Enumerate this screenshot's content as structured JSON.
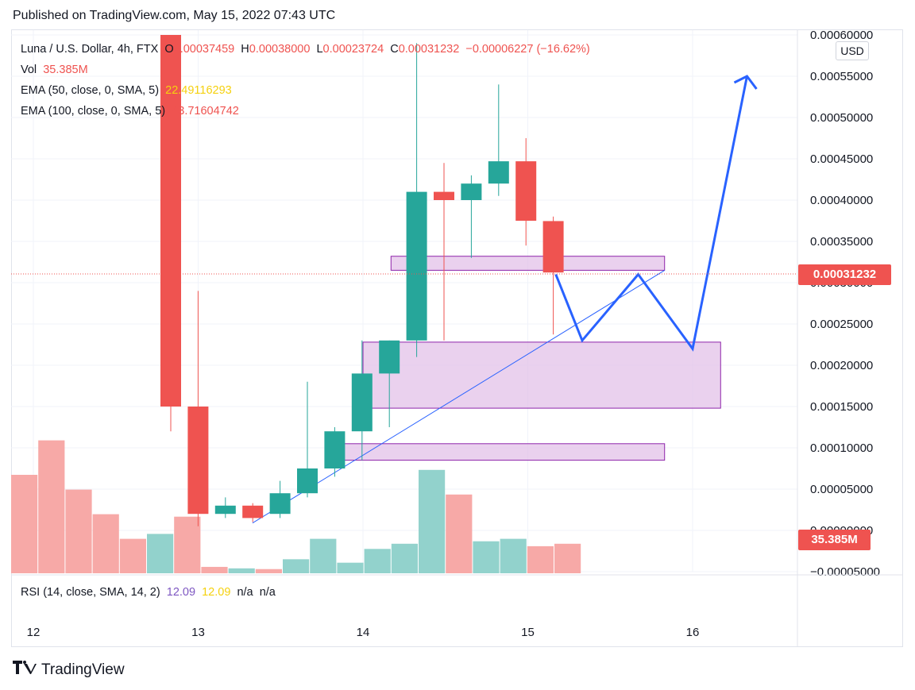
{
  "header": {
    "published": "Published on TradingView.com, May 15, 2022 07:43 UTC"
  },
  "legend": {
    "symbol": "Luna / U.S. Dollar, 4h, FTX",
    "o_label": "O",
    "o_value": "0.00037459",
    "h_label": "H",
    "h_value": "0.00038000",
    "l_label": "L",
    "l_value": "0.00023724",
    "c_label": "C",
    "c_value": "0.00031232",
    "change": "−0.00006227 (−16.62%)",
    "vol_label": "Vol",
    "vol_value": "35.385M",
    "ema50_label": "EMA (50, close, 0, SMA, 5)",
    "ema50_value": "22.49116293",
    "ema100_label": "EMA (100, close, 0, SMA, 5)",
    "ema100_value": "43.71604742",
    "rsi_label": "RSI (14, close, SMA, 14, 2)",
    "rsi_value1": "12.09",
    "rsi_value2": "12.09",
    "rsi_na1": "n/a",
    "rsi_na2": "n/a"
  },
  "axis": {
    "currency": "USD",
    "last_price": "0.00031232",
    "vol_tag": "35.385M",
    "y_ticks": [
      "0.00060000",
      "0.00055000",
      "0.00050000",
      "0.00045000",
      "0.00040000",
      "0.00035000",
      "0.00030000",
      "0.00025000",
      "0.00020000",
      "0.00015000",
      "0.00010000",
      "0.00005000",
      "0.00000000",
      "−0.00005000"
    ],
    "x_ticks": [
      "12",
      "13",
      "14",
      "15",
      "16"
    ]
  },
  "footer": {
    "brand": "TradingView"
  },
  "colors": {
    "up": "#26a69a",
    "down": "#ef5350",
    "up_vol": "#92d2cc",
    "down_vol": "#f7a9a7",
    "zone_fill": "#e1bee7",
    "zone_stroke": "#8e24aa",
    "projection": "#2962ff",
    "trend": "#2962ff"
  },
  "chart_data": {
    "type": "candlestick",
    "title": "Luna / U.S. Dollar, 4h, FTX",
    "x_ticks": [
      "12",
      "13",
      "14",
      "15",
      "16"
    ],
    "ylim": [
      -5e-05,
      0.0006
    ],
    "candles": [
      {
        "o": 0.0006,
        "h": 0.0006,
        "l": 0.00012,
        "c": 0.00015
      },
      {
        "o": 0.00015,
        "h": 0.00029,
        "l": 5e-06,
        "c": 2e-05
      },
      {
        "o": 2e-05,
        "h": 4e-05,
        "l": 1.5e-05,
        "c": 3e-05
      },
      {
        "o": 3e-05,
        "h": 3.3e-05,
        "l": 1e-05,
        "c": 1.5e-05
      },
      {
        "o": 2e-05,
        "h": 6e-05,
        "l": 1.5e-05,
        "c": 4.5e-05
      },
      {
        "o": 4.5e-05,
        "h": 0.00018,
        "l": 4e-05,
        "c": 7.5e-05
      },
      {
        "o": 7.5e-05,
        "h": 0.000125,
        "l": 6.5e-05,
        "c": 0.00012
      },
      {
        "o": 0.00012,
        "h": 0.00023,
        "l": 8.5e-05,
        "c": 0.00019
      },
      {
        "o": 0.00019,
        "h": 0.00023,
        "l": 0.000125,
        "c": 0.00023
      },
      {
        "o": 0.00023,
        "h": 0.00059,
        "l": 0.00021,
        "c": 0.00041
      },
      {
        "o": 0.00041,
        "h": 0.000445,
        "l": 0.00023,
        "c": 0.0004
      },
      {
        "o": 0.0004,
        "h": 0.00043,
        "l": 0.00033,
        "c": 0.00042
      },
      {
        "o": 0.00042,
        "h": 0.00054,
        "l": 0.000405,
        "c": 0.000447
      },
      {
        "o": 0.000447,
        "h": 0.000475,
        "l": 0.000345,
        "c": 0.000375
      },
      {
        "o": 0.00037459,
        "h": 0.00038,
        "l": 0.00023724,
        "c": 0.00031232
      }
    ],
    "volume": [
      {
        "v": 0.4,
        "dir": "down"
      },
      {
        "v": 0.54,
        "dir": "down"
      },
      {
        "v": 0.34,
        "dir": "down"
      },
      {
        "v": 0.24,
        "dir": "down"
      },
      {
        "v": 0.14,
        "dir": "down"
      },
      {
        "v": 0.16,
        "dir": "up"
      },
      {
        "v": 0.23,
        "dir": "down"
      },
      {
        "v": 0.026,
        "dir": "down"
      },
      {
        "v": 0.02,
        "dir": "up"
      },
      {
        "v": 0.017,
        "dir": "down"
      },
      {
        "v": 0.057,
        "dir": "up"
      },
      {
        "v": 0.14,
        "dir": "up"
      },
      {
        "v": 0.043,
        "dir": "up"
      },
      {
        "v": 0.099,
        "dir": "up"
      },
      {
        "v": 0.12,
        "dir": "up"
      },
      {
        "v": 0.42,
        "dir": "up"
      },
      {
        "v": 0.32,
        "dir": "down"
      },
      {
        "v": 0.13,
        "dir": "up"
      },
      {
        "v": 0.14,
        "dir": "up"
      },
      {
        "v": 0.11,
        "dir": "down"
      },
      {
        "v": 0.12,
        "dir": "down"
      }
    ],
    "zones": [
      {
        "y_low": 0.000315,
        "y_high": 0.000332,
        "x_start": "14.17",
        "x_end": "15.83"
      },
      {
        "y_low": 0.000148,
        "y_high": 0.000228,
        "x_start": "14.0",
        "x_end": "16.17"
      },
      {
        "y_low": 8.5e-05,
        "y_high": 0.000105,
        "x_start": "13.83",
        "x_end": "15.83"
      }
    ],
    "trendline": [
      {
        "x": "13.33",
        "y": 9e-06
      },
      {
        "x": "15.83",
        "y": 0.000315
      }
    ],
    "projection": [
      {
        "x": "15.17",
        "y": 0.00031
      },
      {
        "x": "15.33",
        "y": 0.00023
      },
      {
        "x": "15.67",
        "y": 0.00031
      },
      {
        "x": "16.0",
        "y": 0.00022
      },
      {
        "x": "16.33",
        "y": 0.00055
      }
    ]
  }
}
